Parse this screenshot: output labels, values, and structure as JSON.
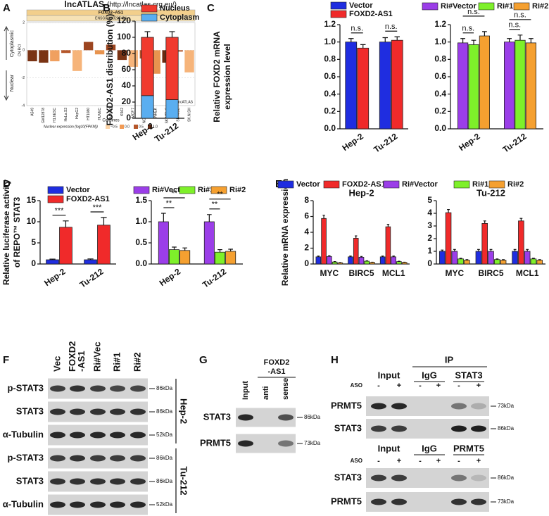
{
  "panel_labels": [
    "A",
    "B",
    "C",
    "D",
    "E",
    "F",
    "G",
    "H"
  ],
  "chart_data": [
    {
      "type": "diverging",
      "title": "lncATLAS",
      "subtitle": "(http://lncatlas.crg.eu/)",
      "gene": "FOXD2−AS1",
      "gene_id": "ENSG00000237424",
      "side_labels": [
        "Cytoplasmic",
        "Nuclear"
      ],
      "ylabel": "CN RCI",
      "xlabel": "Cell lines",
      "watermark": "lncATLAS",
      "categories": [
        "A549",
        "GM12878",
        "H1.hESC",
        "HeLa.S3",
        "HepG2",
        "HT1080",
        "HUVEC",
        "IMR.90",
        "K562",
        "MCF.7",
        "NCI.H460",
        "NHEK",
        "SK.MEL.5",
        "SK.N.DZ",
        "SK.N.SH"
      ],
      "values": [
        -0.8,
        -0.9,
        -0.8,
        -0.2,
        -1.5,
        0.6,
        -0.3,
        0.4,
        -0.7,
        -1.2,
        -0.6,
        -1.7,
        -0.9,
        -0.1,
        -1.6
      ],
      "colors": [
        "#7a3314",
        "#7a3314",
        "#f0a060",
        "#b5562a",
        "#f6b47a",
        "#9c4520",
        "#e8944f",
        "#9c4520",
        "#7a3314",
        "#f6b47a",
        "#b5562a",
        "#e8944f",
        "#6b2a10",
        "#b5562a",
        "#f6b47a"
      ],
      "ylim": [
        -4,
        2
      ],
      "yticks": [
        -4,
        -2,
        0,
        2
      ],
      "legend_title": "Nuclear expression (log10(FPKM))",
      "legend": [
        {
          "label": "−0.5",
          "color": "#fbd3a6"
        },
        {
          "label": "0.0",
          "color": "#f19a55"
        },
        {
          "label": "0.5",
          "color": "#b5562a"
        },
        {
          "label": "1.0",
          "color": "#6b2a10"
        }
      ]
    },
    {
      "type": "bar",
      "stacked": true,
      "ylabel": "FOXD2-AS1 distribution (%)",
      "categories": [
        "Hep-2",
        "Tu-212"
      ],
      "series": [
        {
          "name": "Nucleus",
          "color": "#f03a2e",
          "values": [
            72,
            77
          ],
          "errors": [
            7,
            7
          ]
        },
        {
          "name": "Cytoplasm",
          "color": "#5aaef0",
          "values": [
            28,
            23
          ],
          "errors": [
            2,
            2
          ]
        }
      ],
      "ylim": [
        0,
        120
      ],
      "yticks": [
        0,
        20,
        40,
        60,
        80,
        100,
        120
      ]
    },
    {
      "type": "bar",
      "ylabel": [
        "Relative FOXD2 mRNA",
        "expression level"
      ],
      "categories": [
        "Hep-2",
        "Tu-212"
      ],
      "series": [
        {
          "name": "Vector",
          "color": "#1f2de0",
          "values": [
            1.0,
            1.0
          ],
          "errors": [
            0.04,
            0.05
          ]
        },
        {
          "name": "FOXD2-AS1",
          "color": "#f02a2a",
          "values": [
            0.93,
            1.02
          ],
          "errors": [
            0.04,
            0.04
          ]
        }
      ],
      "ylim": [
        0,
        1.2
      ],
      "yticks": [
        {
          "value": 0,
          "label": "0.0"
        },
        0.2,
        0.4,
        0.6,
        0.8,
        {
          "value": 1,
          "label": "1.0"
        },
        1.2
      ],
      "annotations": [
        "n.s.",
        "n.s."
      ]
    },
    {
      "type": "bar",
      "categories": [
        "Hep-2",
        "Tu-212"
      ],
      "series": [
        {
          "name": "Ri#Vector",
          "color": "#9b3ee8",
          "values": [
            0.99,
            1.0
          ],
          "errors": [
            0.05,
            0.04
          ]
        },
        {
          "name": "Ri#1",
          "color": "#7ef02a",
          "values": [
            0.97,
            1.02
          ],
          "errors": [
            0.05,
            0.06
          ]
        },
        {
          "name": "Ri#2",
          "color": "#f5a030",
          "values": [
            1.07,
            0.99
          ],
          "errors": [
            0.05,
            0.05
          ]
        }
      ],
      "ylim": [
        0,
        1.2
      ],
      "yticks": [
        {
          "value": 0,
          "label": "0.0"
        },
        0.2,
        0.4,
        0.6,
        0.8,
        {
          "value": 1,
          "label": "1.0"
        },
        1.2
      ],
      "annotations": [
        "n.s.",
        "n.s.",
        "n.s.",
        "n.s."
      ]
    },
    {
      "type": "bar",
      "ylabel": [
        "Relative luciferase activity",
        "of REPO™ STAT3"
      ],
      "categories": [
        "Hep-2",
        "Tu-212"
      ],
      "series": [
        {
          "name": "Vector",
          "color": "#1f2de0",
          "values": [
            1.0,
            1.0
          ],
          "errors": [
            0.15,
            0.2
          ]
        },
        {
          "name": "FOXD2-AS1",
          "color": "#f02a2a",
          "values": [
            8.7,
            9.2
          ],
          "errors": [
            1.5,
            1.8
          ]
        }
      ],
      "ylim": [
        0,
        15
      ],
      "yticks": [
        0,
        5,
        10,
        15
      ],
      "annotations": [
        "***",
        "***"
      ]
    },
    {
      "type": "bar",
      "categories": [
        "Hep-2",
        "Tu-212"
      ],
      "series": [
        {
          "name": "Ri#Vector",
          "color": "#9b3ee8",
          "values": [
            1.0,
            1.0
          ],
          "errors": [
            0.2,
            0.17
          ]
        },
        {
          "name": "Ri#1",
          "color": "#7ef02a",
          "values": [
            0.34,
            0.28
          ],
          "errors": [
            0.06,
            0.06
          ]
        },
        {
          "name": "Ri#2",
          "color": "#f5a030",
          "values": [
            0.32,
            0.3
          ],
          "errors": [
            0.06,
            0.05
          ]
        }
      ],
      "ylim": [
        0,
        1.5
      ],
      "yticks": [
        {
          "value": 0,
          "label": "0.0"
        },
        0.5,
        {
          "value": 1,
          "label": "1.0"
        },
        1.5
      ],
      "annotations": [
        "**",
        "**",
        "**",
        "**"
      ]
    },
    {
      "type": "bar",
      "title": "Hep-2",
      "ylabel": "Relative mRNA expression",
      "categories": [
        "MYC",
        "BIRC5",
        "MCL1"
      ],
      "series": [
        {
          "name": "Vector",
          "color": "#1f2de0",
          "values": [
            0.9,
            0.9,
            0.9
          ],
          "errors": [
            0.1,
            0.1,
            0.1
          ]
        },
        {
          "name": "FOXD2-AS1",
          "color": "#f02a2a",
          "values": [
            5.75,
            3.25,
            4.7
          ],
          "errors": [
            0.4,
            0.3,
            0.3
          ]
        },
        {
          "name": "Ri#Vector",
          "color": "#9b3ee8",
          "values": [
            0.95,
            0.85,
            0.9
          ],
          "errors": [
            0.1,
            0.1,
            0.1
          ]
        },
        {
          "name": "Ri#1",
          "color": "#7ef02a",
          "values": [
            0.25,
            0.35,
            0.3
          ],
          "errors": [
            0.05,
            0.05,
            0.05
          ]
        },
        {
          "name": "Ri#2",
          "color": "#f5a030",
          "values": [
            0.15,
            0.2,
            0.2
          ],
          "errors": [
            0.03,
            0.03,
            0.03
          ]
        }
      ],
      "ylim": [
        0,
        8
      ],
      "yticks": [
        0,
        2,
        4,
        6,
        8
      ]
    },
    {
      "type": "bar",
      "title": "Tu-212",
      "categories": [
        "MYC",
        "BIRC5",
        "MCL1"
      ],
      "series": [
        {
          "name": "Vector",
          "color": "#1f2de0",
          "values": [
            1.0,
            1.0,
            1.0
          ],
          "errors": [
            0.1,
            0.15,
            0.15
          ]
        },
        {
          "name": "FOXD2-AS1",
          "color": "#f02a2a",
          "values": [
            4.05,
            3.2,
            3.4
          ],
          "errors": [
            0.25,
            0.2,
            0.2
          ]
        },
        {
          "name": "Ri#Vector",
          "color": "#9b3ee8",
          "values": [
            1.0,
            1.0,
            1.0
          ],
          "errors": [
            0.15,
            0.15,
            0.15
          ]
        },
        {
          "name": "Ri#1",
          "color": "#7ef02a",
          "values": [
            0.4,
            0.35,
            0.4
          ],
          "errors": [
            0.05,
            0.05,
            0.05
          ]
        },
        {
          "name": "Ri#2",
          "color": "#f5a030",
          "values": [
            0.3,
            0.3,
            0.3
          ],
          "errors": [
            0.04,
            0.04,
            0.04
          ]
        }
      ],
      "ylim": [
        0,
        5
      ],
      "yticks": [
        0,
        1,
        2,
        3,
        4,
        5
      ]
    }
  ],
  "blots": {
    "F": {
      "lanes": [
        [
          "Vec"
        ],
        [
          "FOXD2",
          "-AS1"
        ],
        [
          "Ri#Vec"
        ],
        [
          "Ri#1"
        ],
        [
          "Ri#2"
        ]
      ],
      "rows": [
        {
          "label": "p-STAT3",
          "size": "86kDa"
        },
        {
          "label": "STAT3",
          "size": "86kDa"
        },
        {
          "label": "α-Tubulin",
          "size": "52kDa"
        },
        {
          "label": "p-STAT3",
          "size": "86kDa"
        },
        {
          "label": "STAT3",
          "size": "86kDa"
        },
        {
          "label": "α-Tubulin",
          "size": "52kDa"
        }
      ],
      "groups": [
        "Hep-2",
        "Tu-212"
      ]
    },
    "G": {
      "header": [
        "FOXD2",
        "-AS1"
      ],
      "lanes": [
        "Input",
        "anti",
        "sense"
      ],
      "rows": [
        {
          "label": "STAT3",
          "size": "86kDa"
        },
        {
          "label": "PRMT5",
          "size": "73kDa"
        }
      ]
    },
    "H": {
      "header": "IP",
      "panels": [
        {
          "groups": [
            "Input",
            "IgG",
            "STAT3"
          ],
          "treatment": "ASO",
          "signs": [
            "-",
            "+",
            "-",
            "+",
            "-",
            "+"
          ],
          "rows": [
            {
              "label": "PRMT5",
              "size": "73kDa"
            },
            {
              "label": "STAT3",
              "size": "86kDa"
            }
          ]
        },
        {
          "groups": [
            "Input",
            "IgG",
            "PRMT5"
          ],
          "treatment": "ASO",
          "signs": [
            "-",
            "+",
            "-",
            "+",
            "-",
            "+"
          ],
          "rows": [
            {
              "label": "STAT3",
              "size": "86kDa"
            },
            {
              "label": "PRMT5",
              "size": "73kDa"
            }
          ]
        }
      ]
    }
  }
}
